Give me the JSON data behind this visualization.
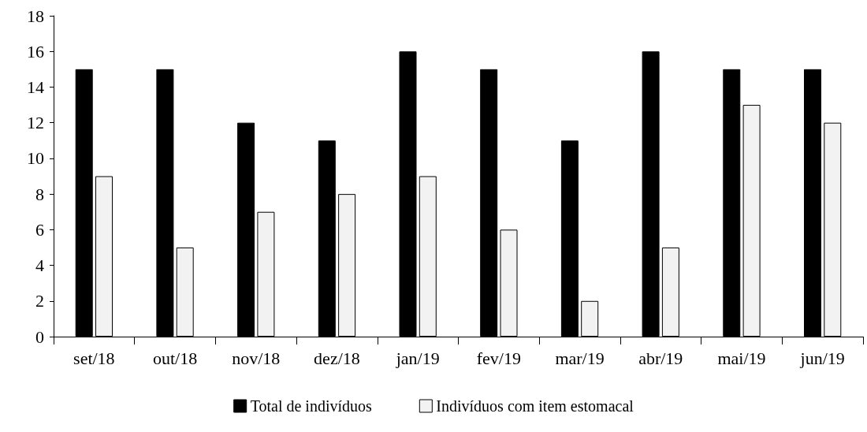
{
  "chart_data": {
    "type": "bar",
    "categories": [
      "set/18",
      "out/18",
      "nov/18",
      "dez/18",
      "jan/19",
      "fev/19",
      "mar/19",
      "abr/19",
      "mai/19",
      "jun/19"
    ],
    "series": [
      {
        "name": "Total de indivíduos",
        "color": "#000000",
        "values": [
          15,
          15,
          12,
          11,
          16,
          15,
          11,
          16,
          15,
          15
        ]
      },
      {
        "name": "Indivíduos com item estomacal",
        "color": "#f2f2f2",
        "values": [
          9,
          5,
          7,
          8,
          9,
          6,
          2,
          5,
          13,
          12
        ]
      }
    ],
    "ylim": [
      0,
      18
    ],
    "yticks": [
      0,
      2,
      4,
      6,
      8,
      10,
      12,
      14,
      16,
      18
    ],
    "grid": false,
    "legend": "bottom"
  }
}
